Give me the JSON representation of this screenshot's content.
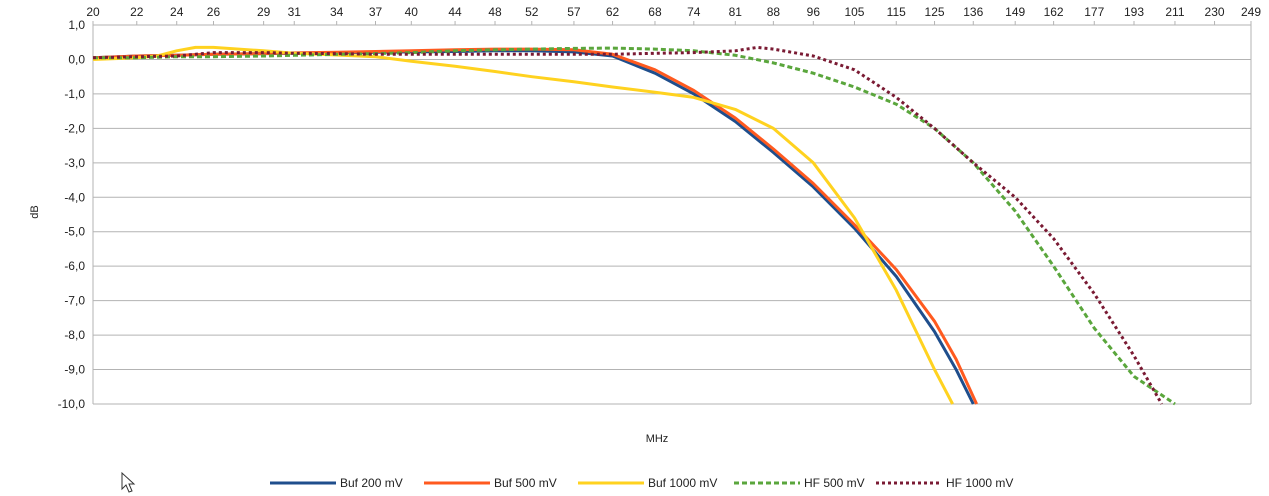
{
  "chart_data": {
    "type": "line",
    "title": "",
    "xlabel": "MHz",
    "ylabel": "dB",
    "x_ticks": [
      "20",
      "22",
      "24",
      "26",
      "29",
      "31",
      "34",
      "37",
      "40",
      "44",
      "48",
      "52",
      "57",
      "62",
      "68",
      "74",
      "81",
      "88",
      "96",
      "105",
      "115",
      "125",
      "136",
      "149",
      "162",
      "177",
      "193",
      "211",
      "230",
      "249"
    ],
    "y_ticks": [
      "1,0",
      "0,0",
      "-1,0",
      "-2,0",
      "-3,0",
      "-4,0",
      "-5,0",
      "-6,0",
      "-7,0",
      "-8,0",
      "-9,0",
      "-10,0"
    ],
    "ylim": [
      -10,
      1
    ],
    "x_scale": "log",
    "grid": "horizontal",
    "legend_position": "bottom",
    "series": [
      {
        "name": "Buf 200 mV",
        "color": "#1f4e8c",
        "style": "solid",
        "points": [
          [
            20,
            0.05
          ],
          [
            22,
            0.1
          ],
          [
            24,
            0.12
          ],
          [
            26,
            0.15
          ],
          [
            29,
            0.17
          ],
          [
            31,
            0.18
          ],
          [
            34,
            0.2
          ],
          [
            37,
            0.21
          ],
          [
            40,
            0.22
          ],
          [
            44,
            0.23
          ],
          [
            48,
            0.25
          ],
          [
            52,
            0.25
          ],
          [
            57,
            0.22
          ],
          [
            62,
            0.1
          ],
          [
            68,
            -0.4
          ],
          [
            74,
            -1.0
          ],
          [
            81,
            -1.8
          ],
          [
            88,
            -2.7
          ],
          [
            96,
            -3.7
          ],
          [
            105,
            -4.9
          ],
          [
            115,
            -6.3
          ],
          [
            125,
            -7.9
          ],
          [
            131,
            -9.0
          ],
          [
            136,
            -10.0
          ]
        ]
      },
      {
        "name": "Buf 500 mV",
        "color": "#ff5a1f",
        "style": "solid",
        "points": [
          [
            20,
            0.05
          ],
          [
            22,
            0.1
          ],
          [
            24,
            0.12
          ],
          [
            26,
            0.15
          ],
          [
            29,
            0.17
          ],
          [
            31,
            0.19
          ],
          [
            34,
            0.21
          ],
          [
            37,
            0.23
          ],
          [
            40,
            0.25
          ],
          [
            44,
            0.28
          ],
          [
            48,
            0.3
          ],
          [
            52,
            0.3
          ],
          [
            57,
            0.28
          ],
          [
            62,
            0.15
          ],
          [
            68,
            -0.3
          ],
          [
            74,
            -0.9
          ],
          [
            81,
            -1.7
          ],
          [
            88,
            -2.6
          ],
          [
            96,
            -3.6
          ],
          [
            105,
            -4.8
          ],
          [
            115,
            -6.1
          ],
          [
            125,
            -7.6
          ],
          [
            131,
            -8.7
          ],
          [
            137,
            -10.0
          ]
        ]
      },
      {
        "name": "Buf 1000 mV",
        "color": "#ffd21f",
        "style": "solid",
        "points": [
          [
            20,
            0.0
          ],
          [
            22,
            0.05
          ],
          [
            23,
            0.1
          ],
          [
            24,
            0.25
          ],
          [
            25,
            0.35
          ],
          [
            26,
            0.35
          ],
          [
            29,
            0.25
          ],
          [
            31,
            0.18
          ],
          [
            34,
            0.13
          ],
          [
            37,
            0.08
          ],
          [
            40,
            -0.05
          ],
          [
            44,
            -0.2
          ],
          [
            48,
            -0.35
          ],
          [
            52,
            -0.5
          ],
          [
            57,
            -0.65
          ],
          [
            62,
            -0.8
          ],
          [
            68,
            -0.95
          ],
          [
            74,
            -1.1
          ],
          [
            81,
            -1.45
          ],
          [
            88,
            -2.0
          ],
          [
            96,
            -3.0
          ],
          [
            105,
            -4.6
          ],
          [
            115,
            -6.7
          ],
          [
            125,
            -9.0
          ],
          [
            130,
            -10.0
          ]
        ]
      },
      {
        "name": "HF 500 mV",
        "color": "#5aa63c",
        "style": "dashed",
        "points": [
          [
            20,
            0.05
          ],
          [
            22,
            0.05
          ],
          [
            24,
            0.08
          ],
          [
            26,
            0.08
          ],
          [
            29,
            0.1
          ],
          [
            31,
            0.12
          ],
          [
            34,
            0.15
          ],
          [
            37,
            0.17
          ],
          [
            40,
            0.2
          ],
          [
            44,
            0.25
          ],
          [
            48,
            0.28
          ],
          [
            52,
            0.3
          ],
          [
            57,
            0.32
          ],
          [
            62,
            0.33
          ],
          [
            68,
            0.3
          ],
          [
            74,
            0.25
          ],
          [
            81,
            0.12
          ],
          [
            88,
            -0.1
          ],
          [
            96,
            -0.4
          ],
          [
            105,
            -0.8
          ],
          [
            115,
            -1.3
          ],
          [
            125,
            -2.0
          ],
          [
            136,
            -3.0
          ],
          [
            149,
            -4.4
          ],
          [
            162,
            -6.0
          ],
          [
            177,
            -7.8
          ],
          [
            193,
            -9.2
          ],
          [
            211,
            -10.0
          ]
        ]
      },
      {
        "name": "HF 1000 mV",
        "color": "#7a1a33",
        "style": "dotted",
        "points": [
          [
            20,
            0.05
          ],
          [
            22,
            0.08
          ],
          [
            24,
            0.1
          ],
          [
            26,
            0.2
          ],
          [
            29,
            0.2
          ],
          [
            31,
            0.18
          ],
          [
            34,
            0.17
          ],
          [
            37,
            0.15
          ],
          [
            40,
            0.15
          ],
          [
            44,
            0.15
          ],
          [
            48,
            0.15
          ],
          [
            52,
            0.15
          ],
          [
            57,
            0.15
          ],
          [
            62,
            0.15
          ],
          [
            68,
            0.18
          ],
          [
            74,
            0.2
          ],
          [
            81,
            0.25
          ],
          [
            85,
            0.35
          ],
          [
            88,
            0.3
          ],
          [
            96,
            0.1
          ],
          [
            105,
            -0.3
          ],
          [
            115,
            -1.1
          ],
          [
            125,
            -2.0
          ],
          [
            136,
            -3.0
          ],
          [
            149,
            -4.0
          ],
          [
            162,
            -5.2
          ],
          [
            177,
            -6.8
          ],
          [
            193,
            -8.6
          ],
          [
            205,
            -10.0
          ]
        ]
      }
    ]
  }
}
